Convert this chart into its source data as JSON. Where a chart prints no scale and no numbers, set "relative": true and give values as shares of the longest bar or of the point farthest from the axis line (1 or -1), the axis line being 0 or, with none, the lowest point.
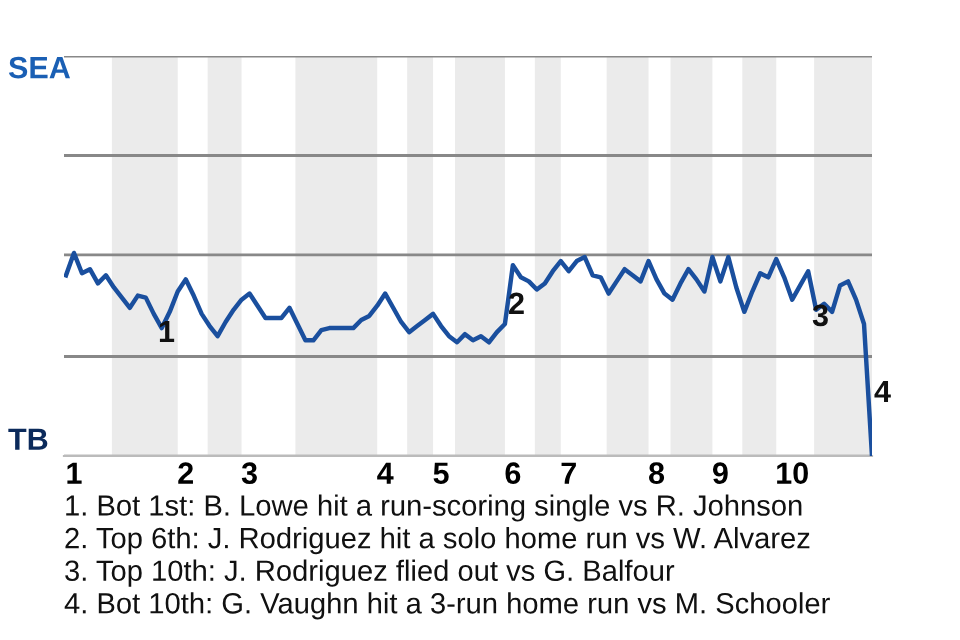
{
  "chart_data": {
    "type": "line",
    "relative": true,
    "categories": [
      null,
      "1",
      null,
      null,
      null,
      null,
      null,
      null,
      null,
      null,
      null,
      null,
      null,
      null,
      null,
      "2",
      null,
      null,
      null,
      null,
      null,
      null,
      null,
      "3",
      null,
      null,
      null,
      null,
      null,
      null,
      null,
      null,
      null,
      null,
      null,
      null,
      null,
      null,
      null,
      null,
      "4",
      null,
      null,
      null,
      null,
      null,
      null,
      "5",
      null,
      null,
      null,
      null,
      null,
      null,
      null,
      null,
      "6",
      null,
      null,
      null,
      null,
      null,
      null,
      "7",
      null,
      null,
      null,
      null,
      null,
      null,
      null,
      null,
      null,
      null,
      "8",
      null,
      null,
      null,
      null,
      null,
      null,
      null,
      "9",
      null,
      null,
      null,
      null,
      null,
      null,
      null,
      null,
      "10",
      null,
      null,
      null,
      null,
      null,
      null,
      null,
      null,
      null,
      null
    ],
    "series": [
      {
        "color": "#1a4f9e",
        "values": [
          0.89,
          1,
          0.9,
          0.92,
          0.85,
          0.89,
          0.83,
          0.78,
          0.73,
          0.79,
          0.78,
          0.7,
          0.63,
          0.71,
          0.81,
          0.87,
          0.79,
          0.7,
          0.64,
          0.59,
          0.66,
          0.72,
          0.77,
          0.8,
          0.74,
          0.68,
          0.68,
          0.68,
          0.73,
          0.65,
          0.57,
          0.57,
          0.62,
          0.63,
          0.63,
          0.63,
          0.63,
          0.67,
          0.69,
          0.74,
          0.8,
          0.73,
          0.66,
          0.61,
          0.64,
          0.67,
          0.7,
          0.64,
          0.59,
          0.56,
          0.6,
          0.57,
          0.59,
          0.56,
          0.61,
          0.65,
          0.94,
          0.88,
          0.86,
          0.82,
          0.85,
          0.91,
          0.96,
          0.91,
          0.96,
          0.98,
          0.89,
          0.88,
          0.8,
          0.86,
          0.92,
          0.89,
          0.86,
          0.96,
          0.87,
          0.8,
          0.77,
          0.85,
          0.92,
          0.87,
          0.81,
          0.98,
          0.86,
          0.98,
          0.83,
          0.71,
          0.81,
          0.9,
          0.88,
          0.97,
          0.88,
          0.77,
          0.84,
          0.91,
          0.72,
          0.75,
          0.71,
          0.84,
          0.86,
          0.77,
          0.65,
          0
        ]
      }
    ],
    "grid": false,
    "marker": "none",
    "line_style": "solid",
    "ref_lines": [
      {
        "axis": "y",
        "value": 0,
        "label": "TB",
        "color": "#bbbbbb"
      },
      {
        "axis": "y",
        "value": 0.49,
        "color": "#888888"
      },
      {
        "axis": "y",
        "value": 0.99,
        "color": "#888888"
      },
      {
        "axis": "y",
        "value": 1.48,
        "color": "#888888"
      },
      {
        "axis": "y",
        "value": 1.97,
        "label": "SEA",
        "color": "#888888"
      }
    ],
    "annotations": [
      "1",
      "2",
      "3",
      "4",
      "1. Bot 1st: B. Lowe hit a run-scoring single vs R. Johnson",
      "2. Top 6th: J. Rodriguez hit a solo home run vs W. Alvarez",
      "3. Top 10th: J. Rodriguez flied out vs G. Balfour",
      "4. Bot 10th: G. Vaughn hit a 3-run home run vs M. Schooler"
    ]
  }
}
